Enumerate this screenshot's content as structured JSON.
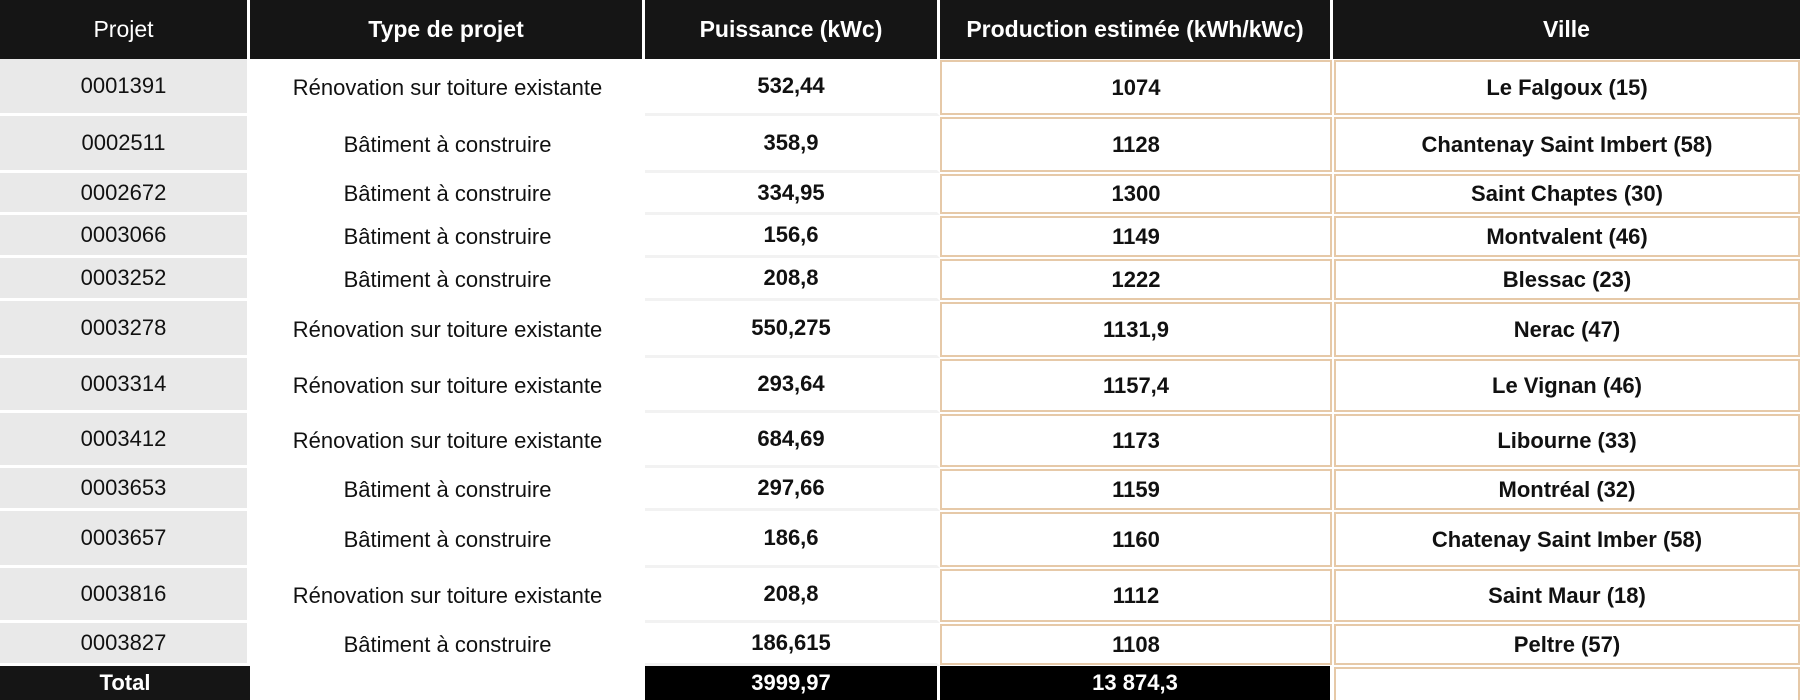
{
  "headers": {
    "projet": "Projet",
    "type": "Type de projet",
    "puissance": "Puissance (kWc)",
    "production": "Production estimée (kWh/kWc)",
    "ville": "Ville"
  },
  "rows": [
    {
      "projet": "0001391",
      "type": "Rénovation sur toiture existante",
      "puissance": "532,44",
      "production": "1074",
      "ville": "Le Falgoux (15)"
    },
    {
      "projet": "0002511",
      "type": "Bâtiment à construire",
      "puissance": "358,9",
      "production": "1128",
      "ville": "Chantenay Saint Imbert (58)"
    },
    {
      "projet": "0002672",
      "type": "Bâtiment à construire",
      "puissance": "334,95",
      "production": "1300",
      "ville": "Saint Chaptes (30)"
    },
    {
      "projet": "0003066",
      "type": "Bâtiment à construire",
      "puissance": "156,6",
      "production": "1149",
      "ville": "Montvalent (46)"
    },
    {
      "projet": "0003252",
      "type": "Bâtiment à construire",
      "puissance": "208,8",
      "production": "1222",
      "ville": "Blessac (23)"
    },
    {
      "projet": "0003278",
      "type": "Rénovation sur toiture existante",
      "puissance": "550,275",
      "production": "1131,9",
      "ville": "Nerac (47)"
    },
    {
      "projet": "0003314",
      "type": "Rénovation sur toiture existante",
      "puissance": "293,64",
      "production": "1157,4",
      "ville": "Le Vignan (46)"
    },
    {
      "projet": "0003412",
      "type": "Rénovation sur toiture existante",
      "puissance": "684,69",
      "production": "1173",
      "ville": "Libourne (33)"
    },
    {
      "projet": "0003653",
      "type": "Bâtiment à construire",
      "puissance": "297,66",
      "production": "1159",
      "ville": "Montréal (32)"
    },
    {
      "projet": "0003657",
      "type": "Bâtiment à construire",
      "puissance": "186,6",
      "production": "1160",
      "ville": "Chatenay Saint Imber (58)"
    },
    {
      "projet": "0003816",
      "type": "Rénovation sur toiture existante",
      "puissance": "208,8",
      "production": "1112",
      "ville": "Saint Maur (18)"
    },
    {
      "projet": "0003827",
      "type": "Bâtiment à construire",
      "puissance": "186,615",
      "production": "1108",
      "ville": "Peltre (57)"
    }
  ],
  "total": {
    "label": "Total",
    "puissance": "3999,97",
    "production": "13 874,3"
  }
}
